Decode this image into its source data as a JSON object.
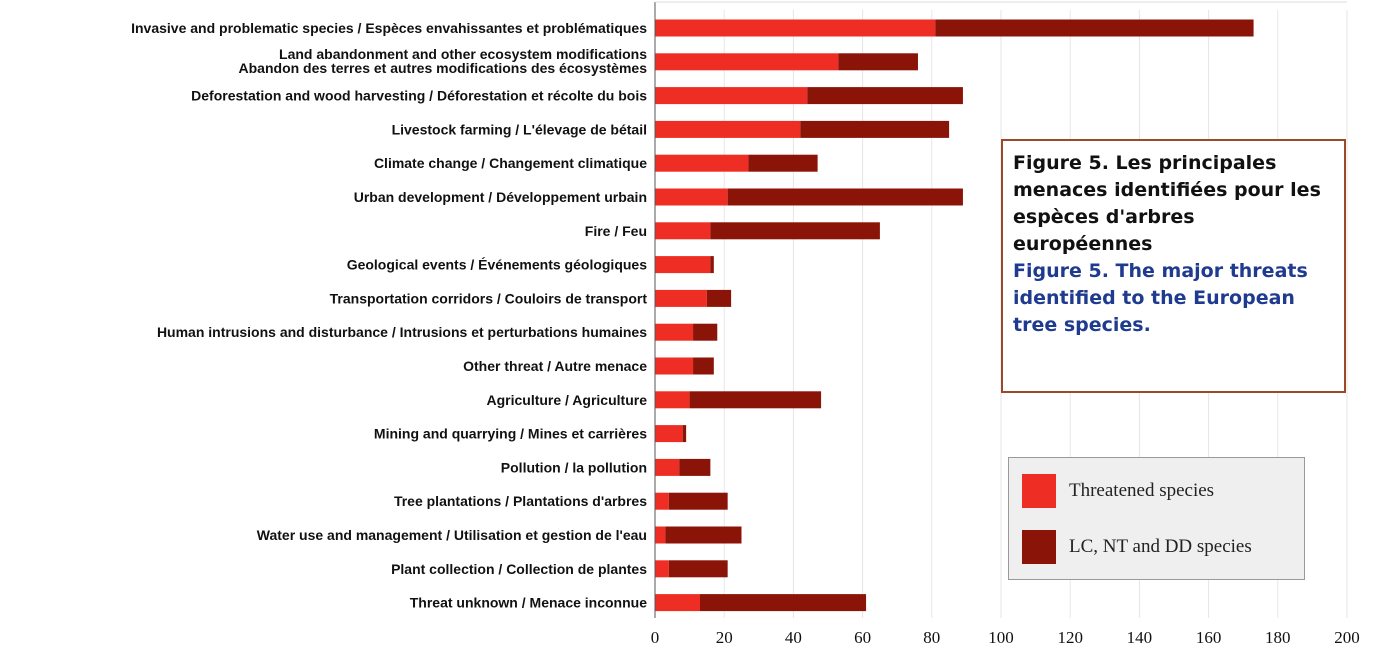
{
  "colors": {
    "threatened": "#ee2e24",
    "lc_nt_dd": "#8b1408"
  },
  "caption": {
    "french": "Figure 5. Les principales menaces identifiées pour les espèces d'arbres européennes",
    "english": "Figure 5. The major threats identified to the European tree species."
  },
  "legend": {
    "threatened": "Threatened species",
    "other": "LC, NT and DD species"
  },
  "chart_data": {
    "type": "bar",
    "orientation": "horizontal",
    "stacked": true,
    "grid": true,
    "legend_position": "bottom-right",
    "xlim": [
      0,
      200
    ],
    "x_ticks": [
      "0",
      "20",
      "40",
      "60",
      "80",
      "100",
      "120",
      "140",
      "160",
      "180",
      "200"
    ],
    "categories": [
      "Invasive and problematic species / Espèces envahissantes et problématiques",
      "Land abandonment and other ecosystem modifications\nAbandon des terres et autres modifications des écosystèmes",
      "Deforestation and wood harvesting / Déforestation et récolte du bois",
      "Livestock farming / L'élevage de bétail",
      "Climate change / Changement climatique",
      "Urban development / Développement urbain",
      "Fire / Feu",
      "Geological events / Événements géologiques",
      "Transportation corridors / Couloirs de transport",
      "Human intrusions and disturbance / Intrusions et perturbations humaines",
      "Other threat / Autre menace",
      "Agriculture / Agriculture",
      "Mining and quarrying / Mines et carrières",
      "Pollution / la pollution",
      "Tree plantations / Plantations d'arbres",
      "Water use and management / Utilisation et gestion de l'eau",
      "Plant collection / Collection de plantes",
      "Threat unknown / Menace inconnue"
    ],
    "series": [
      {
        "name": "Threatened species",
        "color": "#ee2e24",
        "values": [
          81,
          53,
          44,
          42,
          27,
          21,
          16,
          16,
          15,
          11,
          11,
          10,
          8,
          7,
          4,
          3,
          4,
          13
        ]
      },
      {
        "name": "LC, NT and DD species",
        "color": "#8b1408",
        "values": [
          92,
          23,
          45,
          43,
          20,
          68,
          49,
          1,
          7,
          7,
          6,
          38,
          1,
          9,
          17,
          22,
          17,
          48
        ]
      }
    ]
  }
}
